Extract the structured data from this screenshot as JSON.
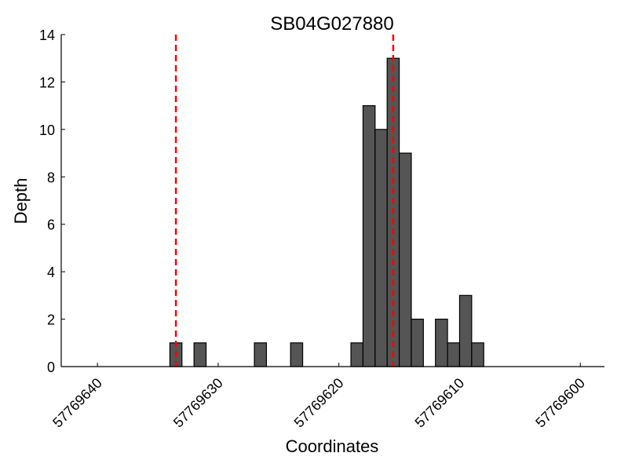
{
  "chart_data": {
    "type": "bar",
    "title": "SB04G027880",
    "xlabel": "Coordinates",
    "ylabel": "Depth",
    "xlim": [
      57769643,
      57769598
    ],
    "x_reversed": true,
    "ylim": [
      0,
      14
    ],
    "x_ticks": [
      57769640,
      57769630,
      57769620,
      57769610,
      57769600
    ],
    "y_ticks": [
      0,
      2,
      4,
      6,
      8,
      10,
      12,
      14
    ],
    "grid": false,
    "bar_color": "#555555",
    "bar_edge_color": "#000000",
    "bars": [
      {
        "x": 57769634,
        "depth": 1
      },
      {
        "x": 57769632,
        "depth": 1
      },
      {
        "x": 57769627,
        "depth": 1
      },
      {
        "x": 57769624,
        "depth": 1
      },
      {
        "x": 57769619,
        "depth": 1
      },
      {
        "x": 57769618,
        "depth": 11
      },
      {
        "x": 57769617,
        "depth": 10
      },
      {
        "x": 57769616,
        "depth": 13
      },
      {
        "x": 57769615,
        "depth": 9
      },
      {
        "x": 57769614,
        "depth": 2
      },
      {
        "x": 57769612,
        "depth": 2
      },
      {
        "x": 57769611,
        "depth": 1
      },
      {
        "x": 57769610,
        "depth": 3
      },
      {
        "x": 57769609,
        "depth": 1
      }
    ],
    "vlines": {
      "color": "#ff0000",
      "style": "dashed",
      "x": [
        57769633.5,
        57769615.5
      ]
    }
  }
}
